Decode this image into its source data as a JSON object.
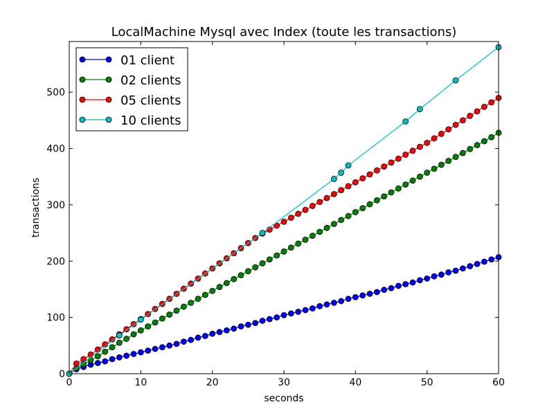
{
  "chart_data": {
    "type": "line",
    "title": "LocalMachine Mysql avec Index (toute les transactions)",
    "xlabel": "seconds",
    "ylabel": "transactions",
    "xlim": [
      0,
      60
    ],
    "ylim": [
      0,
      590
    ],
    "xticks": [
      0,
      10,
      20,
      30,
      40,
      50,
      60
    ],
    "yticks": [
      0,
      100,
      200,
      300,
      400,
      500
    ],
    "grid": false,
    "legend_position": "top-left",
    "series": [
      {
        "name": "01 client",
        "color": "#0000ff",
        "x": [
          0,
          1,
          2,
          3,
          4,
          5,
          6,
          7,
          8,
          9,
          10,
          11,
          12,
          13,
          14,
          15,
          16,
          17,
          18,
          19,
          20,
          21,
          22,
          23,
          24,
          25,
          26,
          27,
          28,
          29,
          30,
          31,
          32,
          33,
          34,
          35,
          36,
          37,
          38,
          39,
          40,
          41,
          42,
          43,
          44,
          45,
          46,
          47,
          48,
          49,
          50,
          51,
          52,
          53,
          54,
          55,
          56,
          57,
          58,
          59,
          60
        ],
        "y": [
          0,
          8,
          12,
          16,
          19,
          22,
          26,
          29,
          32,
          35,
          38,
          41,
          44,
          47,
          50,
          53,
          57,
          60,
          64,
          67,
          71,
          74,
          77,
          80,
          84,
          87,
          90,
          94,
          97,
          100,
          104,
          107,
          110,
          113,
          116,
          120,
          123,
          126,
          129,
          133,
          136,
          139,
          142,
          145,
          149,
          152,
          156,
          159,
          162,
          166,
          169,
          173,
          176,
          180,
          183,
          187,
          191,
          195,
          199,
          203,
          207
        ]
      },
      {
        "name": "02 clients",
        "color": "#008000",
        "x": [
          0,
          1,
          2,
          3,
          4,
          5,
          6,
          7,
          8,
          9,
          10,
          11,
          12,
          13,
          14,
          15,
          16,
          17,
          18,
          19,
          20,
          21,
          22,
          23,
          24,
          25,
          26,
          27,
          28,
          29,
          30,
          31,
          32,
          33,
          34,
          35,
          36,
          37,
          38,
          39,
          40,
          41,
          42,
          43,
          44,
          45,
          46,
          47,
          48,
          49,
          50,
          51,
          52,
          53,
          54,
          55,
          56,
          57,
          58,
          59,
          60
        ],
        "y": [
          0,
          10,
          17,
          24,
          31,
          39,
          47,
          55,
          62,
          70,
          77,
          84,
          91,
          98,
          105,
          112,
          119,
          126,
          133,
          140,
          147,
          154,
          161,
          168,
          175,
          182,
          189,
          196,
          203,
          210,
          217,
          224,
          231,
          238,
          245,
          252,
          259,
          266,
          273,
          280,
          287,
          294,
          301,
          308,
          315,
          322,
          329,
          336,
          343,
          350,
          357,
          364,
          371,
          378,
          385,
          392,
          399,
          406,
          413,
          420,
          428
        ]
      },
      {
        "name": "05 clients",
        "color": "#ff0000",
        "x": [
          0,
          1,
          2,
          3,
          4,
          5,
          6,
          7,
          8,
          9,
          10,
          11,
          12,
          13,
          14,
          15,
          16,
          17,
          18,
          19,
          20,
          21,
          22,
          23,
          24,
          25,
          26,
          27,
          28,
          29,
          30,
          31,
          32,
          33,
          34,
          35,
          36,
          37,
          38,
          39,
          40,
          41,
          42,
          43,
          44,
          45,
          46,
          47,
          48,
          49,
          50,
          51,
          52,
          53,
          54,
          55,
          56,
          57,
          58,
          59,
          60
        ],
        "y": [
          0,
          18,
          26,
          34,
          43,
          52,
          61,
          70,
          79,
          88,
          97,
          106,
          115,
          124,
          133,
          142,
          151,
          160,
          169,
          178,
          187,
          196,
          205,
          214,
          223,
          232,
          241,
          249,
          256,
          263,
          270,
          277,
          284,
          291,
          298,
          305,
          312,
          319,
          326,
          333,
          340,
          347,
          354,
          361,
          368,
          375,
          382,
          389,
          396,
          403,
          410,
          418,
          426,
          434,
          442,
          450,
          458,
          466,
          474,
          482,
          490
        ]
      },
      {
        "name": "10 clients",
        "color": "#00bfbf",
        "x": [
          0,
          7,
          10,
          27,
          37,
          38,
          39,
          47,
          49,
          54,
          60
        ],
        "y": [
          0,
          68,
          96,
          250,
          346,
          357,
          370,
          448,
          470,
          521,
          580
        ]
      }
    ]
  }
}
